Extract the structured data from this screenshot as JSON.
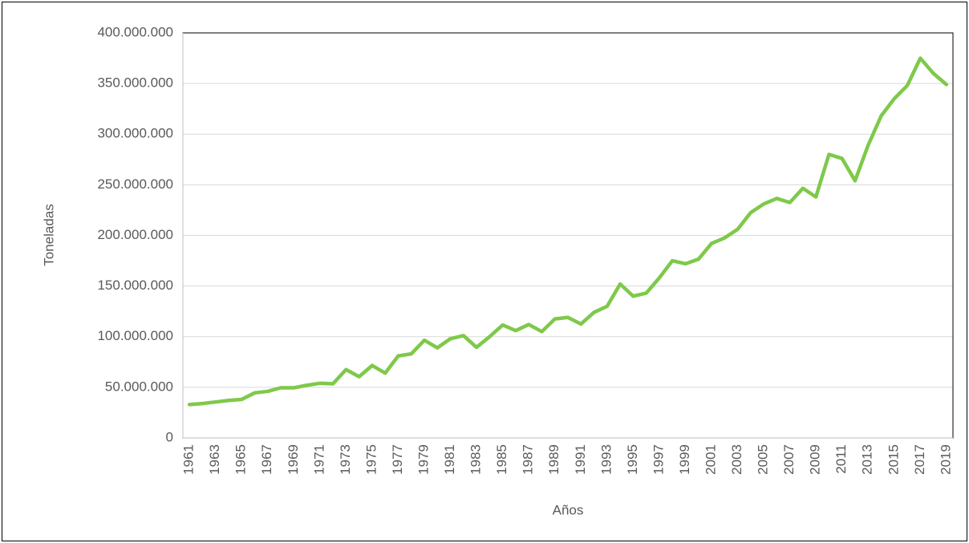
{
  "chart_data": {
    "type": "line",
    "xlabel": "Años",
    "ylabel": "Toneladas",
    "categories": [
      "1961",
      null,
      "1963",
      null,
      "1965",
      null,
      "1967",
      null,
      "1969",
      null,
      "1971",
      null,
      "1973",
      null,
      "1975",
      null,
      "1977",
      null,
      "1979",
      null,
      "1981",
      null,
      "1983",
      null,
      "1985",
      null,
      "1987",
      null,
      "1989",
      null,
      "1991",
      null,
      "1993",
      null,
      "1995",
      null,
      "1997",
      null,
      "1999",
      null,
      "2001",
      null,
      "2003",
      null,
      "2005",
      null,
      "2007",
      null,
      "2009",
      null,
      "2011",
      null,
      "2013",
      null,
      "2015",
      null,
      "2017",
      null,
      "2019"
    ],
    "values": [
      33000000,
      34000000,
      35500000,
      37000000,
      38000000,
      44500000,
      46000000,
      49500000,
      49500000,
      52000000,
      54000000,
      53500000,
      67500000,
      60500000,
      71500000,
      64000000,
      81000000,
      83000000,
      96500000,
      89000000,
      98000000,
      101000000,
      89500000,
      100000000,
      111500000,
      106000000,
      112000000,
      105000000,
      117500000,
      119000000,
      112500000,
      124000000,
      130000000,
      152000000,
      140000000,
      143000000,
      158000000,
      175000000,
      172000000,
      176500000,
      192000000,
      197500000,
      206000000,
      222500000,
      231000000,
      236500000,
      232500000,
      246500000,
      238000000,
      280000000,
      276000000,
      254000000,
      289000000,
      318000000,
      335000000,
      348000000,
      375000000,
      360000000,
      349000000
    ],
    "color": "#7ec94a",
    "ylim": [
      0,
      400000000
    ],
    "yticks": [
      0,
      {
        "value": 50000000,
        "label": "50.000.000"
      },
      {
        "value": 100000000,
        "label": "100.000.000"
      },
      {
        "value": 150000000,
        "label": "150.000.000"
      },
      {
        "value": 200000000,
        "label": "200.000.000"
      },
      {
        "value": 250000000,
        "label": "250.000.000"
      },
      {
        "value": 300000000,
        "label": "300.000.000"
      },
      {
        "value": 350000000,
        "label": "350.000.000"
      },
      {
        "value": 400000000,
        "label": "400.000.000"
      }
    ],
    "grid": true
  }
}
